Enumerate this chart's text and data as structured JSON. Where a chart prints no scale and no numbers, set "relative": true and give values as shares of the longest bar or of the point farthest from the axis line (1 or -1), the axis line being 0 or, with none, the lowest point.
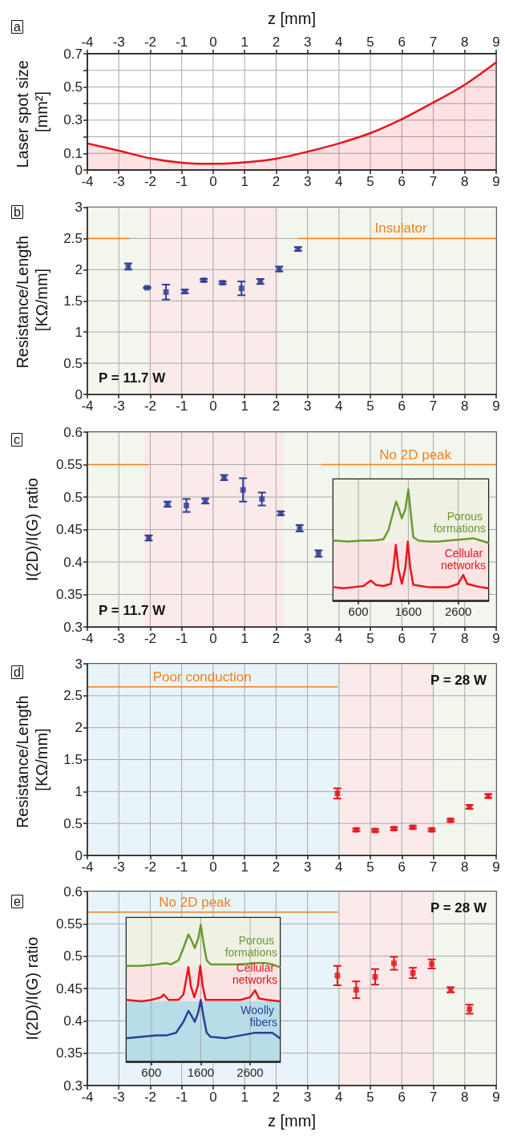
{
  "chart_data": [
    {
      "type": "area",
      "title": "a",
      "x2label": "z [mm]",
      "ylabel": "Laser spot size [mm²]",
      "color": "#e8141c",
      "marker": "none",
      "grid": true,
      "x": [
        -4,
        -3,
        -2,
        -1,
        0,
        1,
        2,
        3,
        4,
        5,
        6,
        7,
        8,
        9
      ],
      "values": [
        0.16,
        0.116,
        0.07,
        0.044,
        0.037,
        0.046,
        0.068,
        0.11,
        0.16,
        0.222,
        0.306,
        0.406,
        0.513,
        0.648
      ],
      "xlim": [
        -4,
        9
      ],
      "xticks": [
        -4,
        -3,
        -2,
        -1,
        0,
        1,
        2,
        3,
        4,
        5,
        6,
        7,
        8,
        9
      ],
      "x2lim": [
        -4,
        9
      ],
      "x2ticks": [
        -4,
        -3,
        -2,
        -1,
        0,
        1,
        2,
        3,
        4,
        5,
        6,
        7,
        8,
        9
      ],
      "ylim": [
        0,
        0.7
      ],
      "yticks": [
        0,
        0.1,
        {
          "value": 0.2,
          "label": null
        },
        0.3,
        {
          "value": 0.4,
          "label": null
        },
        0.5,
        {
          "value": 0.6,
          "label": null
        },
        0.7
      ]
    },
    {
      "type": "scatter",
      "title": "b",
      "ylabel": "Resistance/Length [KΩ/mm]",
      "marker": "square",
      "grid": true,
      "series": [
        {
          "color": "#2e3f96",
          "x": [
            -2.7,
            -2.1,
            -1.5,
            -0.9,
            -0.3,
            0.3,
            0.9,
            1.5,
            2.1,
            2.7
          ],
          "values": [
            2.05,
            1.71,
            1.64,
            1.65,
            1.83,
            1.79,
            1.7,
            1.81,
            2.01,
            2.33
          ],
          "errors": [
            0.05,
            0.01,
            0.12,
            0.03,
            0.02,
            0.02,
            0.11,
            0.04,
            0.04,
            0.03
          ]
        },
        {
          "type": "line",
          "marker": "none",
          "color": "#f07f1b",
          "x": [
            -4,
            -2.67
          ],
          "values": [
            2.5,
            2.5
          ]
        },
        {
          "type": "line",
          "marker": "none",
          "color": "#f07f1b",
          "x": [
            2.71,
            9
          ],
          "values": [
            2.5,
            2.5
          ]
        }
      ],
      "bands": [
        {
          "axis": "x",
          "from": -4,
          "to": -2.1,
          "color": "#f3f6ec"
        },
        {
          "axis": "x",
          "from": -2.1,
          "to": 2.1,
          "color": "#fbeaea"
        },
        {
          "axis": "x",
          "from": 2.1,
          "to": 9,
          "color": "#f3f6ec"
        }
      ],
      "annotations": [
        "P = 11.7 W",
        {
          "text": "Insulator",
          "x": 5.97,
          "y": 2.5
        }
      ],
      "xlim": [
        -4,
        9
      ],
      "xticks": [
        -4,
        -3,
        -2,
        -1,
        0,
        1,
        2,
        3,
        4,
        5,
        6,
        7,
        8,
        9
      ],
      "ylim": [
        0,
        3
      ],
      "yticks": [
        0,
        0.5,
        1,
        1.5,
        2,
        2.5,
        3
      ]
    },
    {
      "type": "scatter",
      "title": "c",
      "ylabel": "I(2D)/I(G) ratio",
      "marker": "square",
      "grid": true,
      "series": [
        {
          "color": "#2e3f96",
          "x": [
            -2.05,
            -1.45,
            -0.85,
            -0.25,
            0.35,
            0.95,
            1.55,
            2.15,
            2.75,
            3.35
          ],
          "values": [
            0.437,
            0.489,
            0.487,
            0.494,
            0.53,
            0.511,
            0.497,
            0.475,
            0.452,
            0.413
          ],
          "errors": [
            0.004,
            0.004,
            0.01,
            0.004,
            0.004,
            0.018,
            0.01,
            0.003,
            0.005,
            0.005
          ]
        },
        {
          "type": "line",
          "marker": "none",
          "color": "#f07f1b",
          "x": [
            -4,
            -2.05
          ],
          "values": [
            0.55,
            0.55
          ]
        },
        {
          "type": "line",
          "marker": "none",
          "color": "#f07f1b",
          "x": [
            3.45,
            9
          ],
          "values": [
            0.55,
            0.55
          ]
        }
      ],
      "bands": [
        {
          "axis": "x",
          "from": -4,
          "to": -2.2,
          "color": "#f3f6ec"
        },
        {
          "axis": "x",
          "from": -2.2,
          "to": 2.25,
          "color": "#fbeaea"
        },
        {
          "axis": "x",
          "from": 2.25,
          "to": 9,
          "color": "#f3f6ec"
        }
      ],
      "annotations": [
        "P = 11.7 W",
        {
          "text": "No 2D peak",
          "x": 6.43,
          "y": 0.55
        }
      ],
      "xlim": [
        -4,
        9
      ],
      "xticks": [
        -4,
        -3,
        -2,
        -1,
        0,
        1,
        2,
        3,
        4,
        5,
        6,
        7,
        8,
        9
      ],
      "ylim": [
        0.3,
        0.6
      ],
      "yticks": [
        0.3,
        0.35,
        0.4,
        0.45,
        0.5,
        0.55,
        0.6
      ]
    },
    {
      "type": "line",
      "relative": true,
      "marker": "none",
      "grid": "x",
      "series": [
        {
          "name": "Porous formations",
          "color": "#6b9a2e",
          "x": [
            100,
            400,
            700,
            900,
            1100,
            1200,
            1300,
            1355,
            1400,
            1470,
            1540,
            1600,
            1650,
            1700,
            1800,
            2000,
            2200,
            2400,
            2700,
            2900,
            3050,
            3200
          ],
          "values": [
            0.54,
            0.53,
            0.54,
            0.54,
            0.55,
            0.63,
            0.8,
            0.89,
            0.84,
            0.74,
            0.82,
            1,
            0.78,
            0.57,
            0.54,
            0.53,
            0.53,
            0.54,
            0.55,
            0.56,
            0.54,
            0.52
          ]
        },
        {
          "name": "Cellular networks",
          "color": "#e8141c",
          "x": [
            100,
            300,
            500,
            700,
            850,
            950,
            1100,
            1250,
            1300,
            1350,
            1400,
            1470,
            1540,
            1590,
            1640,
            1700,
            2000,
            2400,
            2600,
            2700,
            2780,
            2950,
            3050,
            3200
          ],
          "values": [
            0.12,
            0.11,
            0.12,
            0.13,
            0.18,
            0.14,
            0.13,
            0.15,
            0.29,
            0.5,
            0.29,
            0.15,
            0.29,
            0.53,
            0.29,
            0.14,
            0.12,
            0.12,
            0.15,
            0.23,
            0.15,
            0.13,
            0.12,
            0.11
          ]
        }
      ],
      "bands": [
        {
          "axis": "y",
          "from": 0.53,
          "to": 1.09,
          "color": "#eef1e4"
        },
        {
          "axis": "y",
          "from": 0,
          "to": 0.53,
          "color": "#fbe4e4"
        }
      ],
      "xlim": [
        100,
        3200
      ],
      "xticks": [
        600,
        1600,
        2600
      ]
    },
    {
      "type": "scatter",
      "title": "d",
      "ylabel": "Resistance/Length [KΩ/mm]",
      "marker": "square",
      "grid": true,
      "series": [
        {
          "color": "#e8141c",
          "x": [
            3.95,
            4.55,
            5.15,
            5.75,
            6.35,
            6.95,
            7.55,
            8.15,
            8.75
          ],
          "values": [
            0.97,
            0.4,
            0.39,
            0.42,
            0.44,
            0.4,
            0.55,
            0.76,
            0.93
          ],
          "errors": [
            0.08,
            0.02,
            0.02,
            0.02,
            0.02,
            0.02,
            0.02,
            0.03,
            0.03
          ]
        },
        {
          "type": "line",
          "marker": "none",
          "color": "#f07f1b",
          "x": [
            -4,
            3.95
          ],
          "values": [
            2.64,
            2.64
          ]
        }
      ],
      "bands": [
        {
          "axis": "x",
          "from": -4,
          "to": 4,
          "color": "#e8f4f9"
        },
        {
          "axis": "x",
          "from": 4,
          "to": 7,
          "color": "#fbeaea"
        },
        {
          "axis": "x",
          "from": 7,
          "to": 9,
          "color": "#f3f6ec"
        }
      ],
      "annotations": [
        "P = 28 W",
        {
          "text": "Poor conduction",
          "x": -0.35,
          "y": 2.64
        }
      ],
      "xlim": [
        -4,
        9
      ],
      "xticks": [
        -4,
        -3,
        -2,
        -1,
        0,
        1,
        2,
        3,
        4,
        5,
        6,
        7,
        8,
        9
      ],
      "ylim": [
        0,
        3
      ],
      "yticks": [
        0,
        0.5,
        1,
        1.5,
        2,
        2.5,
        3
      ]
    },
    {
      "type": "scatter",
      "title": "e",
      "xlabel": "z [mm]",
      "ylabel": "I(2D)/I(G) ratio",
      "marker": "square",
      "grid": true,
      "series": [
        {
          "color": "#e8141c",
          "x": [
            3.95,
            4.55,
            5.15,
            5.75,
            6.35,
            6.95,
            7.55,
            8.15
          ],
          "values": [
            0.47,
            0.448,
            0.468,
            0.489,
            0.474,
            0.488,
            0.448,
            0.418
          ],
          "errors": [
            0.015,
            0.013,
            0.012,
            0.01,
            0.008,
            0.007,
            0.004,
            0.007
          ]
        },
        {
          "type": "line",
          "marker": "none",
          "color": "#f07f1b",
          "x": [
            -4,
            3.95
          ],
          "values": [
            0.568,
            0.568
          ]
        }
      ],
      "bands": [
        {
          "axis": "x",
          "from": -4,
          "to": 4,
          "color": "#e8f4f9"
        },
        {
          "axis": "x",
          "from": 4,
          "to": 7,
          "color": "#fbeaea"
        },
        {
          "axis": "x",
          "from": 7,
          "to": 9,
          "color": "#f3f6ec"
        }
      ],
      "annotations": [
        "P = 28 W",
        {
          "text": "No 2D peak",
          "x": -0.58,
          "y": 0.568
        }
      ],
      "xlim": [
        -4,
        9
      ],
      "xticks": [
        -4,
        -3,
        -2,
        -1,
        0,
        1,
        2,
        3,
        4,
        5,
        6,
        7,
        8,
        9
      ],
      "ylim": [
        0.3,
        0.6
      ],
      "yticks": [
        0.3,
        0.35,
        0.4,
        0.45,
        0.5,
        0.55,
        0.6
      ]
    },
    {
      "type": "line",
      "relative": true,
      "marker": "none",
      "grid": "x",
      "series": [
        {
          "name": "Porous formations",
          "color": "#6b9a2e",
          "x": [
            100,
            400,
            700,
            900,
            1000,
            1150,
            1250,
            1350,
            1420,
            1480,
            1550,
            1600,
            1650,
            1720,
            1800,
            2100,
            2400,
            2700,
            2900,
            3050,
            3200
          ],
          "values": [
            0.7,
            0.7,
            0.71,
            0.72,
            0.71,
            0.74,
            0.83,
            0.93,
            0.88,
            0.83,
            0.9,
            1,
            0.88,
            0.74,
            0.71,
            0.71,
            0.71,
            0.72,
            0.72,
            0.71,
            0.69
          ]
        },
        {
          "name": "Cellular networks",
          "color": "#e8141c",
          "x": [
            100,
            400,
            600,
            800,
            850,
            950,
            1150,
            1250,
            1320,
            1350,
            1400,
            1470,
            1540,
            1590,
            1640,
            1700,
            2000,
            2400,
            2600,
            2700,
            2780,
            2950,
            3200
          ],
          "values": [
            0.45,
            0.44,
            0.45,
            0.47,
            0.49,
            0.45,
            0.45,
            0.49,
            0.63,
            0.69,
            0.55,
            0.47,
            0.55,
            0.7,
            0.55,
            0.45,
            0.45,
            0.45,
            0.47,
            0.52,
            0.46,
            0.45,
            0.44
          ]
        },
        {
          "name": "Woolly fibers",
          "color": "#2e3f96",
          "x": [
            100,
            400,
            700,
            900,
            1100,
            1250,
            1350,
            1420,
            1480,
            1550,
            1600,
            1650,
            1720,
            1800,
            2100,
            2400,
            2700,
            2900,
            3050,
            3200
          ],
          "values": [
            0.17,
            0.18,
            0.19,
            0.19,
            0.21,
            0.29,
            0.37,
            0.33,
            0.29,
            0.36,
            0.45,
            0.34,
            0.21,
            0.18,
            0.17,
            0.19,
            0.21,
            0.21,
            0.21,
            0.17
          ]
        }
      ],
      "bands": [
        {
          "axis": "y",
          "from": 0.69,
          "to": 1.05,
          "color": "#eef1e4"
        },
        {
          "axis": "y",
          "from": 0.44,
          "to": 0.69,
          "color": "#fbe3e3"
        },
        {
          "axis": "y",
          "from": 0,
          "to": 0.44,
          "color": "#b7dde8"
        }
      ],
      "xlim": [
        100,
        3200
      ],
      "xticks": [
        600,
        1600,
        2600
      ]
    }
  ]
}
